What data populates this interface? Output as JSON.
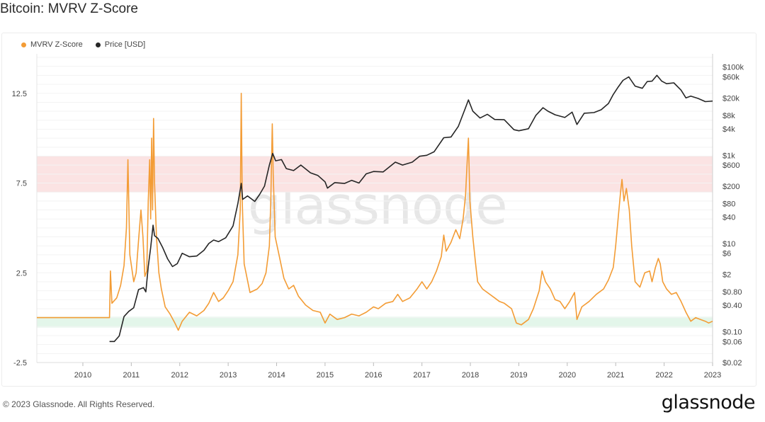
{
  "title": "Bitcoin: MVRV Z-Score",
  "legend": {
    "mvrv_label": "MVRV Z-Score",
    "price_label": "Price [USD]"
  },
  "colors": {
    "mvrv": "#f39c35",
    "price": "#262626",
    "top_zone": "#fbe3e3",
    "bottom_zone": "#e3f6ea"
  },
  "watermark": "glassnode",
  "footer": {
    "copyright": "© 2023 Glassnode. All Rights Reserved.",
    "logo": "glassnode"
  },
  "chart_data": {
    "type": "line",
    "title": "Bitcoin: MVRV Z-Score",
    "x_range": [
      2009.05,
      2023.0
    ],
    "x_ticks": [
      "2010",
      "2011",
      "2012",
      "2013",
      "2014",
      "2015",
      "2016",
      "2017",
      "2018",
      "2019",
      "2020",
      "2021",
      "2022",
      "2023"
    ],
    "left_axis": {
      "ylim": [
        -2.5,
        14.7
      ],
      "ticks": [
        "12.5",
        "7.5",
        "2.5",
        "-2.5"
      ],
      "tick_values": [
        12.5,
        7.5,
        2.5,
        -2.5
      ]
    },
    "right_axis": {
      "scale": "log",
      "ylim": [
        0.02,
        200000
      ],
      "ticks": [
        "$100k",
        "$60k",
        "$20k",
        "$8k",
        "$4k",
        "$1k",
        "$600",
        "$200",
        "$80",
        "$40",
        "$10",
        "$6",
        "$2",
        "$0.80",
        "$0.40",
        "$0.10",
        "$0.06",
        "$0.02"
      ],
      "tick_values": [
        100000,
        60000,
        20000,
        8000,
        4000,
        1000,
        600,
        200,
        80,
        40,
        10,
        6,
        2,
        0.8,
        0.4,
        0.1,
        0.06,
        0.02
      ]
    },
    "zones": [
      {
        "name": "top",
        "y_from": 7.0,
        "y_to": 9.0
      },
      {
        "name": "bottom",
        "y_from": -0.55,
        "y_to": 0.05
      }
    ],
    "grid": true,
    "legend_position": "top-left",
    "series": [
      {
        "name": "MVRV Z-Score",
        "axis": "left",
        "points": [
          [
            2009.05,
            0.0
          ],
          [
            2010.55,
            0.0
          ],
          [
            2010.57,
            2.6
          ],
          [
            2010.6,
            0.8
          ],
          [
            2010.7,
            1.1
          ],
          [
            2010.78,
            1.8
          ],
          [
            2010.85,
            2.9
          ],
          [
            2010.9,
            5.0
          ],
          [
            2010.93,
            8.8
          ],
          [
            2010.97,
            3.5
          ],
          [
            2011.05,
            2.0
          ],
          [
            2011.1,
            2.5
          ],
          [
            2011.15,
            4.3
          ],
          [
            2011.2,
            6.0
          ],
          [
            2011.24,
            4.5
          ],
          [
            2011.28,
            2.3
          ],
          [
            2011.32,
            2.6
          ],
          [
            2011.35,
            6.5
          ],
          [
            2011.38,
            8.8
          ],
          [
            2011.4,
            5.5
          ],
          [
            2011.42,
            10.0
          ],
          [
            2011.44,
            6.0
          ],
          [
            2011.46,
            11.1
          ],
          [
            2011.48,
            7.5
          ],
          [
            2011.52,
            4.5
          ],
          [
            2011.57,
            2.5
          ],
          [
            2011.62,
            1.6
          ],
          [
            2011.7,
            0.6
          ],
          [
            2011.8,
            0.2
          ],
          [
            2011.9,
            -0.3
          ],
          [
            2011.97,
            -0.7
          ],
          [
            2012.05,
            -0.2
          ],
          [
            2012.2,
            0.3
          ],
          [
            2012.35,
            0.1
          ],
          [
            2012.5,
            0.4
          ],
          [
            2012.6,
            0.8
          ],
          [
            2012.7,
            1.4
          ],
          [
            2012.8,
            0.9
          ],
          [
            2012.9,
            1.1
          ],
          [
            2013.0,
            1.5
          ],
          [
            2013.1,
            2.0
          ],
          [
            2013.2,
            3.5
          ],
          [
            2013.25,
            6.0
          ],
          [
            2013.27,
            12.5
          ],
          [
            2013.29,
            6.5
          ],
          [
            2013.33,
            3.0
          ],
          [
            2013.45,
            1.4
          ],
          [
            2013.6,
            1.6
          ],
          [
            2013.7,
            1.9
          ],
          [
            2013.78,
            2.5
          ],
          [
            2013.85,
            4.0
          ],
          [
            2013.88,
            6.5
          ],
          [
            2013.91,
            10.8
          ],
          [
            2013.93,
            8.0
          ],
          [
            2013.97,
            4.5
          ],
          [
            2014.05,
            3.5
          ],
          [
            2014.15,
            2.2
          ],
          [
            2014.25,
            1.6
          ],
          [
            2014.35,
            1.8
          ],
          [
            2014.45,
            1.2
          ],
          [
            2014.6,
            0.7
          ],
          [
            2014.75,
            0.4
          ],
          [
            2014.9,
            0.3
          ],
          [
            2015.0,
            -0.3
          ],
          [
            2015.1,
            0.2
          ],
          [
            2015.25,
            -0.1
          ],
          [
            2015.4,
            0.0
          ],
          [
            2015.55,
            0.2
          ],
          [
            2015.7,
            0.1
          ],
          [
            2015.85,
            0.3
          ],
          [
            2016.0,
            0.6
          ],
          [
            2016.1,
            0.5
          ],
          [
            2016.25,
            0.8
          ],
          [
            2016.4,
            0.9
          ],
          [
            2016.5,
            1.3
          ],
          [
            2016.6,
            0.9
          ],
          [
            2016.75,
            1.1
          ],
          [
            2016.9,
            1.6
          ],
          [
            2017.0,
            2.0
          ],
          [
            2017.1,
            1.6
          ],
          [
            2017.2,
            2.0
          ],
          [
            2017.3,
            2.6
          ],
          [
            2017.4,
            3.4
          ],
          [
            2017.45,
            4.6
          ],
          [
            2017.5,
            3.7
          ],
          [
            2017.6,
            4.2
          ],
          [
            2017.7,
            4.9
          ],
          [
            2017.78,
            4.4
          ],
          [
            2017.85,
            5.5
          ],
          [
            2017.9,
            6.8
          ],
          [
            2017.93,
            8.5
          ],
          [
            2017.96,
            10.0
          ],
          [
            2017.99,
            6.5
          ],
          [
            2018.05,
            4.5
          ],
          [
            2018.1,
            3.2
          ],
          [
            2018.15,
            2.0
          ],
          [
            2018.25,
            1.6
          ],
          [
            2018.35,
            1.4
          ],
          [
            2018.5,
            1.1
          ],
          [
            2018.6,
            0.9
          ],
          [
            2018.7,
            0.8
          ],
          [
            2018.85,
            0.5
          ],
          [
            2018.95,
            -0.3
          ],
          [
            2019.05,
            -0.4
          ],
          [
            2019.2,
            -0.1
          ],
          [
            2019.3,
            0.5
          ],
          [
            2019.42,
            1.5
          ],
          [
            2019.48,
            2.6
          ],
          [
            2019.55,
            2.0
          ],
          [
            2019.65,
            1.6
          ],
          [
            2019.75,
            1.0
          ],
          [
            2019.85,
            0.9
          ],
          [
            2019.95,
            0.5
          ],
          [
            2020.05,
            0.9
          ],
          [
            2020.15,
            1.4
          ],
          [
            2020.2,
            -0.1
          ],
          [
            2020.3,
            0.6
          ],
          [
            2020.45,
            0.9
          ],
          [
            2020.6,
            1.3
          ],
          [
            2020.75,
            1.6
          ],
          [
            2020.85,
            2.1
          ],
          [
            2020.95,
            2.8
          ],
          [
            2021.0,
            4.0
          ],
          [
            2021.05,
            5.5
          ],
          [
            2021.1,
            7.0
          ],
          [
            2021.13,
            7.7
          ],
          [
            2021.17,
            6.5
          ],
          [
            2021.22,
            7.2
          ],
          [
            2021.28,
            6.0
          ],
          [
            2021.33,
            4.0
          ],
          [
            2021.4,
            2.0
          ],
          [
            2021.5,
            1.7
          ],
          [
            2021.6,
            2.5
          ],
          [
            2021.7,
            2.6
          ],
          [
            2021.75,
            2.0
          ],
          [
            2021.82,
            2.8
          ],
          [
            2021.88,
            3.3
          ],
          [
            2021.92,
            3.0
          ],
          [
            2021.97,
            2.0
          ],
          [
            2022.05,
            1.6
          ],
          [
            2022.15,
            1.3
          ],
          [
            2022.25,
            1.4
          ],
          [
            2022.35,
            0.9
          ],
          [
            2022.45,
            0.3
          ],
          [
            2022.55,
            -0.2
          ],
          [
            2022.65,
            0.0
          ],
          [
            2022.75,
            -0.1
          ],
          [
            2022.85,
            -0.2
          ],
          [
            2022.92,
            -0.3
          ],
          [
            2023.0,
            -0.2
          ]
        ]
      },
      {
        "name": "Price [USD]",
        "axis": "right",
        "points": [
          [
            2010.55,
            0.06
          ],
          [
            2010.65,
            0.06
          ],
          [
            2010.75,
            0.08
          ],
          [
            2010.85,
            0.22
          ],
          [
            2010.95,
            0.29
          ],
          [
            2011.05,
            0.35
          ],
          [
            2011.15,
            0.9
          ],
          [
            2011.25,
            1.0
          ],
          [
            2011.3,
            0.8
          ],
          [
            2011.35,
            3.0
          ],
          [
            2011.4,
            8.0
          ],
          [
            2011.45,
            26.0
          ],
          [
            2011.48,
            15.0
          ],
          [
            2011.55,
            13.0
          ],
          [
            2011.65,
            8.0
          ],
          [
            2011.75,
            4.5
          ],
          [
            2011.85,
            3.0
          ],
          [
            2011.95,
            3.5
          ],
          [
            2012.05,
            6.0
          ],
          [
            2012.2,
            5.0
          ],
          [
            2012.35,
            5.2
          ],
          [
            2012.5,
            7.0
          ],
          [
            2012.6,
            10.0
          ],
          [
            2012.7,
            12.0
          ],
          [
            2012.8,
            11.0
          ],
          [
            2012.95,
            13.5
          ],
          [
            2013.1,
            25.0
          ],
          [
            2013.2,
            80.0
          ],
          [
            2013.27,
            230.0
          ],
          [
            2013.3,
            100.0
          ],
          [
            2013.4,
            120.0
          ],
          [
            2013.55,
            90.0
          ],
          [
            2013.65,
            130.0
          ],
          [
            2013.75,
            200.0
          ],
          [
            2013.85,
            600.0
          ],
          [
            2013.92,
            1100.0
          ],
          [
            2013.98,
            750.0
          ],
          [
            2014.1,
            800.0
          ],
          [
            2014.2,
            500.0
          ],
          [
            2014.35,
            450.0
          ],
          [
            2014.5,
            600.0
          ],
          [
            2014.7,
            400.0
          ],
          [
            2014.85,
            350.0
          ],
          [
            2015.0,
            250.0
          ],
          [
            2015.05,
            180.0
          ],
          [
            2015.2,
            240.0
          ],
          [
            2015.4,
            230.0
          ],
          [
            2015.55,
            270.0
          ],
          [
            2015.7,
            235.0
          ],
          [
            2015.85,
            380.0
          ],
          [
            2016.0,
            430.0
          ],
          [
            2016.2,
            420.0
          ],
          [
            2016.45,
            700.0
          ],
          [
            2016.6,
            600.0
          ],
          [
            2016.8,
            700.0
          ],
          [
            2016.95,
            950.0
          ],
          [
            2017.1,
            1000.0
          ],
          [
            2017.25,
            1200.0
          ],
          [
            2017.45,
            2500.0
          ],
          [
            2017.6,
            2600.0
          ],
          [
            2017.75,
            4500.0
          ],
          [
            2017.9,
            12000.0
          ],
          [
            2017.96,
            18000.0
          ],
          [
            2018.05,
            10000.0
          ],
          [
            2018.2,
            7000.0
          ],
          [
            2018.35,
            8500.0
          ],
          [
            2018.5,
            6500.0
          ],
          [
            2018.7,
            6400.0
          ],
          [
            2018.9,
            3800.0
          ],
          [
            2019.0,
            3600.0
          ],
          [
            2019.2,
            4000.0
          ],
          [
            2019.35,
            8000.0
          ],
          [
            2019.5,
            12000.0
          ],
          [
            2019.6,
            10000.0
          ],
          [
            2019.75,
            8300.0
          ],
          [
            2019.95,
            7200.0
          ],
          [
            2020.1,
            9500.0
          ],
          [
            2020.2,
            5000.0
          ],
          [
            2020.35,
            9000.0
          ],
          [
            2020.55,
            9300.0
          ],
          [
            2020.7,
            10800.0
          ],
          [
            2020.85,
            15000.0
          ],
          [
            2020.95,
            24000.0
          ],
          [
            2021.05,
            35000.0
          ],
          [
            2021.15,
            50000.0
          ],
          [
            2021.27,
            60000.0
          ],
          [
            2021.4,
            37000.0
          ],
          [
            2021.55,
            33000.0
          ],
          [
            2021.65,
            47000.0
          ],
          [
            2021.75,
            48000.0
          ],
          [
            2021.85,
            65000.0
          ],
          [
            2021.95,
            48000.0
          ],
          [
            2022.05,
            42000.0
          ],
          [
            2022.2,
            44000.0
          ],
          [
            2022.35,
            30000.0
          ],
          [
            2022.45,
            20000.0
          ],
          [
            2022.55,
            22000.0
          ],
          [
            2022.7,
            19500.0
          ],
          [
            2022.85,
            16500.0
          ],
          [
            2022.95,
            16800.0
          ],
          [
            2023.0,
            17000.0
          ]
        ]
      }
    ]
  }
}
